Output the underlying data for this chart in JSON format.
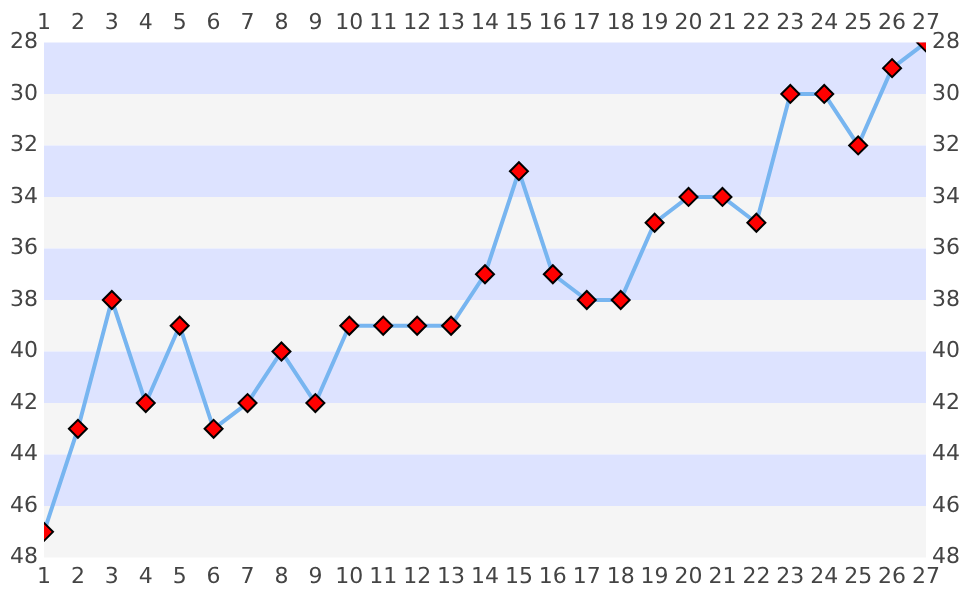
{
  "chart_data": {
    "type": "line",
    "x": [
      1,
      2,
      3,
      4,
      5,
      6,
      7,
      8,
      9,
      10,
      11,
      12,
      13,
      14,
      15,
      16,
      17,
      18,
      19,
      20,
      21,
      22,
      23,
      24,
      25,
      26,
      27
    ],
    "series": [
      {
        "color": "#77b5f0",
        "colors": [
          "#ff0000",
          "#ff0000",
          "#ff0000",
          "#ff0000",
          "#ff0000",
          "#ff0000",
          "#ff0000",
          "#ff0000",
          "#ff0000",
          "#ff0000",
          "#ff0000",
          "#ff0000",
          "#ff0000",
          "#ff0000",
          "#ff0000",
          "#ff0000",
          "#ff0000",
          "#ff0000",
          "#ff0000",
          "#ff0000",
          "#ff0000",
          "#ff0000",
          "#ff0000",
          "#ff0000",
          "#ff0000",
          "#ff0000",
          "#ff0000"
        ],
        "values": [
          47,
          43,
          38,
          42,
          39,
          43,
          42,
          40,
          42,
          39,
          39,
          39,
          39,
          37,
          33,
          37,
          38,
          38,
          35,
          34,
          34,
          35,
          30,
          30,
          32,
          29,
          28
        ]
      }
    ],
    "xlim": [
      1,
      27
    ],
    "xticks": [
      1,
      2,
      3,
      4,
      5,
      6,
      7,
      8,
      9,
      10,
      11,
      12,
      13,
      14,
      15,
      16,
      17,
      18,
      19,
      20,
      21,
      22,
      23,
      24,
      25,
      26,
      27
    ],
    "x2lim": [
      1,
      27
    ],
    "x2ticks": [
      1,
      2,
      3,
      4,
      5,
      6,
      7,
      8,
      9,
      10,
      11,
      12,
      13,
      14,
      15,
      16,
      17,
      18,
      19,
      20,
      21,
      22,
      23,
      24,
      25,
      26,
      27
    ],
    "ylim": [
      48,
      28
    ],
    "yticks": [
      28,
      30,
      32,
      34,
      36,
      38,
      40,
      42,
      44,
      46,
      48
    ],
    "y2lim": [
      48,
      28
    ],
    "y2ticks": [
      28,
      30,
      32,
      34,
      36,
      38,
      40,
      42,
      44,
      46,
      48
    ],
    "bands": [
      {
        "axis": "y",
        "from": 28,
        "to": 30,
        "color": "#dde3ff"
      },
      {
        "axis": "y",
        "from": 30,
        "to": 32,
        "color": "#f5f5f5"
      },
      {
        "axis": "y",
        "from": 32,
        "to": 34,
        "color": "#dde3ff"
      },
      {
        "axis": "y",
        "from": 34,
        "to": 36,
        "color": "#f5f5f5"
      },
      {
        "axis": "y",
        "from": 36,
        "to": 38,
        "color": "#dde3ff"
      },
      {
        "axis": "y",
        "from": 38,
        "to": 40,
        "color": "#f5f5f5"
      },
      {
        "axis": "y",
        "from": 40,
        "to": 42,
        "color": "#dde3ff"
      },
      {
        "axis": "y",
        "from": 42,
        "to": 44,
        "color": "#f5f5f5"
      },
      {
        "axis": "y",
        "from": 44,
        "to": 46,
        "color": "#dde3ff"
      },
      {
        "axis": "y",
        "from": 46,
        "to": 48,
        "color": "#f5f5f5"
      }
    ],
    "marker": "diamond",
    "line_style": "solid",
    "grid": false,
    "legend": false
  }
}
